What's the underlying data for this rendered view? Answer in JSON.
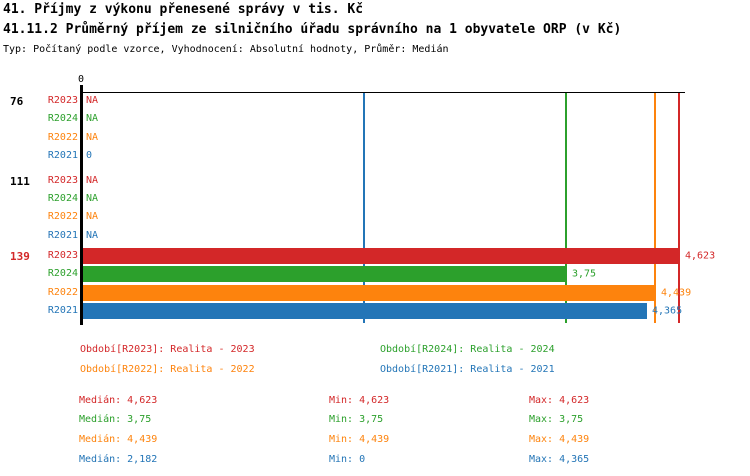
{
  "header": {
    "title1": "41. Příjmy z výkonu přenesené správy v tis. Kč",
    "title2": "41.11.2 Průměrný příjem ze silničního úřadu správního na 1 obyvatele ORP (v Kč)",
    "subtitle": "Typ: Počítaný podle vzorce, Vyhodnocení: Absolutní hodnoty, Průměr: Medián"
  },
  "colors": {
    "R2023": "#d32728",
    "R2024": "#2ca02c",
    "R2022": "#fd830d",
    "R2021": "#2375b7",
    "axis": "#000000"
  },
  "chart_data": {
    "type": "bar",
    "orientation": "horizontal",
    "grid": false,
    "axis": {
      "origin_label": "0",
      "min": 0,
      "max": 4.67
    },
    "series_order": [
      "R2023",
      "R2024",
      "R2022",
      "R2021"
    ],
    "groups": [
      {
        "label": "76",
        "rows": [
          {
            "series": "R2023",
            "display": "NA",
            "value": null
          },
          {
            "series": "R2024",
            "display": "NA",
            "value": null
          },
          {
            "series": "R2022",
            "display": "NA",
            "value": null
          },
          {
            "series": "R2021",
            "display": "0",
            "value": 0
          }
        ]
      },
      {
        "label": "111",
        "rows": [
          {
            "series": "R2023",
            "display": "NA",
            "value": null
          },
          {
            "series": "R2024",
            "display": "NA",
            "value": null
          },
          {
            "series": "R2022",
            "display": "NA",
            "value": null
          },
          {
            "series": "R2021",
            "display": "NA",
            "value": null
          }
        ]
      },
      {
        "label": "139",
        "highlighted": true,
        "rows": [
          {
            "series": "R2023",
            "display": "4,623",
            "value": 4.623
          },
          {
            "series": "R2024",
            "display": "3,75",
            "value": 3.75
          },
          {
            "series": "R2022",
            "display": "4,439",
            "value": 4.439
          },
          {
            "series": "R2021",
            "display": "4,365",
            "value": 4.365
          }
        ]
      }
    ],
    "median_lines": [
      {
        "series": "R2023",
        "value": 4.623
      },
      {
        "series": "R2024",
        "value": 3.75
      },
      {
        "series": "R2022",
        "value": 4.439
      },
      {
        "series": "R2021",
        "value": 2.182
      }
    ],
    "legend": [
      {
        "series": "R2023",
        "text": "Období[R2023]: Realita - 2023"
      },
      {
        "series": "R2024",
        "text": "Období[R2024]: Realita - 2024"
      },
      {
        "series": "R2022",
        "text": "Období[R2022]: Realita - 2022"
      },
      {
        "series": "R2021",
        "text": "Období[R2021]: Realita - 2021"
      }
    ],
    "stats": {
      "labels": {
        "median": "Medián:",
        "min": "Min:",
        "max": "Max:"
      },
      "rows": [
        {
          "series": "R2023",
          "median": "4,623",
          "min": "4,623",
          "max": "4,623"
        },
        {
          "series": "R2024",
          "median": "3,75",
          "min": "3,75",
          "max": "3,75"
        },
        {
          "series": "R2022",
          "median": "4,439",
          "min": "4,439",
          "max": "4,439"
        },
        {
          "series": "R2021",
          "median": "2,182",
          "min": "0",
          "max": "4,365"
        }
      ]
    }
  }
}
